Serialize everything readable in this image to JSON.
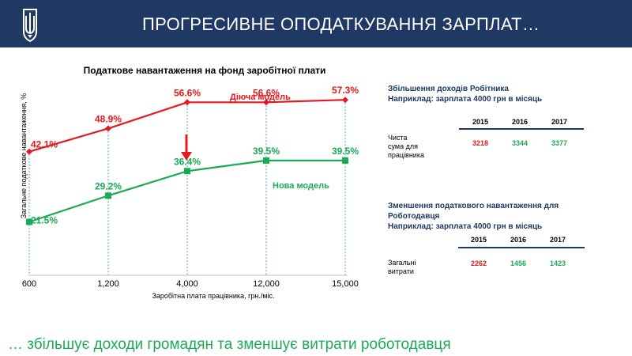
{
  "header": {
    "title": "ПРОГРЕСИВНЕ ОПОДАТКУВАННЯ ЗАРПЛАТ…",
    "colors": {
      "bg": "#1f3864",
      "text": "#ffffff"
    }
  },
  "chart_data": {
    "type": "line",
    "title": "Податкове навантаження на фонд заробітної плати",
    "xlabel": "Заробітна плата працівника, грн./міс.",
    "ylabel": "Загальне податкове навантаження, %",
    "categories": [
      "600",
      "1,200",
      "4,000",
      "12,000",
      "15,000"
    ],
    "ylim": [
      10,
      62
    ],
    "series": [
      {
        "name": "Діюча модель",
        "values": [
          42.1,
          48.9,
          56.6,
          56.6,
          57.3
        ],
        "labels": [
          "42.1%",
          "48.9%",
          "56.6%",
          "56.6%",
          "57.3%"
        ],
        "color": "#e31a1c",
        "marker": "diamond"
      },
      {
        "name": "Нова модель",
        "values": [
          21.5,
          29.2,
          36.4,
          39.5,
          39.5
        ],
        "labels": [
          "21.5%",
          "29.2%",
          "36.4%",
          "39.5%",
          "39.5%"
        ],
        "color": "#1aab55",
        "marker": "square"
      }
    ],
    "arrow_at_category": "4,000"
  },
  "table1": {
    "title_line1": "Збільшення доходів Робітника",
    "title_line2": "Наприклад:  зарплата 4000 грн в місяць",
    "years": [
      "2015",
      "2016",
      "2017"
    ],
    "row_label_line1": "Чиста сума для",
    "row_label_line2": "працівника",
    "values": [
      "3218",
      "3344",
      "3377"
    ],
    "value_colors": [
      "#e31a1c",
      "#1aab55",
      "#1aab55"
    ]
  },
  "table2": {
    "title_line1": "Зменшення податкового навантаження для",
    "title_line2": "Роботодавця",
    "title_line3": "Наприклад: зарплата 4000 грн в місяць",
    "years": [
      "2015",
      "2016",
      "2017"
    ],
    "row_label": "Загальні витрати",
    "values": [
      "2262",
      "1456",
      "1423"
    ],
    "value_colors": [
      "#e31a1c",
      "#1aab55",
      "#1aab55"
    ]
  },
  "footer": {
    "text": "… збільшує доходи громадян та зменшує витрати роботодавця",
    "color": "#1aab55"
  }
}
